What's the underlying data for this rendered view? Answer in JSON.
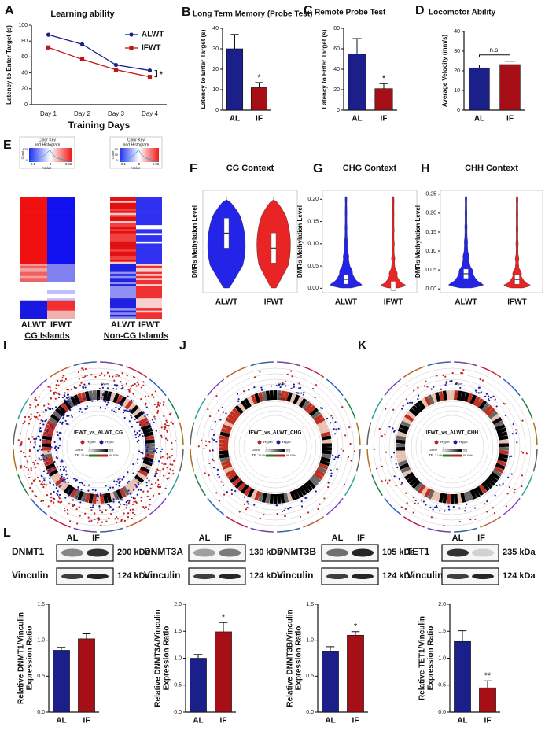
{
  "panel_labels": [
    "A",
    "B",
    "C",
    "D",
    "E",
    "F",
    "G",
    "H",
    "I",
    "J",
    "K",
    "L"
  ],
  "chart_data": [
    {
      "type": "line",
      "title": "Learning ability",
      "categories": [
        "Day 1",
        "Day 2",
        "Day 3",
        "Day 4"
      ],
      "xlabel": "Training Days",
      "ylabel": "Latency to Enter Target (s)",
      "ylim": [
        0,
        100
      ],
      "yticks": [
        0,
        20,
        40,
        60,
        80,
        100
      ],
      "series": [
        {
          "name": "ALWT",
          "color": "#1b1f8a",
          "values": [
            88,
            76,
            50,
            43
          ]
        },
        {
          "name": "IFWT",
          "color": "#c0161c",
          "values": [
            72,
            57,
            44,
            35
          ]
        }
      ],
      "significance": "*"
    },
    {
      "type": "bar",
      "title": "Long Term Memory (Probe Test)",
      "categories": [
        "AL",
        "IF"
      ],
      "colors": [
        "#1b1f8a",
        "#a50f15"
      ],
      "values": [
        30,
        11
      ],
      "errors": [
        7,
        2.5
      ],
      "ylim": [
        0,
        40
      ],
      "yticks": [
        0,
        10,
        20,
        30,
        40
      ],
      "ylabel": "Latency to Enter Target (s)",
      "significance": "*"
    },
    {
      "type": "bar",
      "title": "Remote Probe Test",
      "categories": [
        "AL",
        "IF"
      ],
      "colors": [
        "#1b1f8a",
        "#a50f15"
      ],
      "values": [
        55,
        21
      ],
      "errors": [
        15,
        5
      ],
      "ylim": [
        0,
        80
      ],
      "yticks": [
        0,
        20,
        40,
        60,
        80
      ],
      "ylabel": "Latency to Enter Target (s)",
      "significance": "*"
    },
    {
      "type": "bar",
      "title": "Locomotor Ability",
      "categories": [
        "AL",
        "IF"
      ],
      "colors": [
        "#1b1f8a",
        "#a50f15"
      ],
      "values": [
        21.5,
        23.2
      ],
      "errors": [
        1.5,
        1.7
      ],
      "ylim": [
        0,
        40
      ],
      "yticks": [
        0,
        10,
        20,
        30,
        40
      ],
      "ylabel": "Average Velocity (mm/s)",
      "bracket": "n.s."
    },
    {
      "type": "violin",
      "title": "CG Context",
      "categories": [
        "ALWT",
        "IFWT"
      ],
      "colors": [
        "#2424e8",
        "#e82424"
      ],
      "values": [
        0.59,
        0.43
      ],
      "ylim": [
        -0.05,
        1.05
      ],
      "ylabel": "DMRs Methylation Level"
    },
    {
      "type": "violin",
      "title": "CHG Context",
      "categories": [
        "ALWT",
        "IFWT"
      ],
      "colors": [
        "#2424e8",
        "#e82424"
      ],
      "values": [
        0.02,
        0.005
      ],
      "ylim": [
        -0.01,
        0.22
      ],
      "yticks": [
        {
          "value": 0,
          "label": "0.00"
        },
        0.05,
        {
          "value": 0.1,
          "label": "0.10"
        },
        0.15,
        {
          "value": 0.2,
          "label": "0.20"
        }
      ],
      "ylabel": "DMRs Methylation Level"
    },
    {
      "type": "violin",
      "title": "CHH Context",
      "categories": [
        "ALWT",
        "IFWT"
      ],
      "colors": [
        "#2424e8",
        "#e82424"
      ],
      "values": [
        0.04,
        0.025
      ],
      "ylim": [
        -0.01,
        0.26
      ],
      "yticks": [
        {
          "value": 0,
          "label": "0.00"
        },
        0.05,
        {
          "value": 0.1,
          "label": "0.10"
        },
        0.15,
        {
          "value": 0.2,
          "label": "0.20"
        },
        0.25
      ],
      "ylabel": "DMRs Methylation Level"
    },
    {
      "type": "bar",
      "categories": [
        "AL",
        "IF"
      ],
      "colors": [
        "#1b1f8a",
        "#a50f15"
      ],
      "values": [
        0.86,
        1.02
      ],
      "errors": [
        0.04,
        0.07
      ],
      "ylim": [
        0,
        1.5
      ],
      "yticks": [
        {
          "value": 0,
          "label": "0.0"
        },
        0.5,
        {
          "value": 1,
          "label": "1.0"
        },
        1.5
      ],
      "ylabel": [
        "Relative DNMT1/Vinculin",
        "Expression Ratio"
      ]
    },
    {
      "type": "bar",
      "categories": [
        "AL",
        "IF"
      ],
      "colors": [
        "#1b1f8a",
        "#a50f15"
      ],
      "values": [
        1.0,
        1.49
      ],
      "errors": [
        0.07,
        0.17
      ],
      "ylim": [
        0,
        2
      ],
      "yticks": [
        {
          "value": 0,
          "label": "0.0"
        },
        0.5,
        {
          "value": 1,
          "label": "1.0"
        },
        1.5,
        {
          "value": 2,
          "label": "2.0"
        }
      ],
      "ylabel": [
        "Relative DNMT3A/Vinculin",
        "Expression Ratio"
      ],
      "significance": "*"
    },
    {
      "type": "bar",
      "categories": [
        "AL",
        "IF"
      ],
      "colors": [
        "#1b1f8a",
        "#a50f15"
      ],
      "values": [
        0.85,
        1.07
      ],
      "errors": [
        0.06,
        0.05
      ],
      "ylim": [
        0,
        1.5
      ],
      "yticks": [
        {
          "value": 0,
          "label": "0.0"
        },
        0.5,
        {
          "value": 1,
          "label": "1.0"
        },
        1.5
      ],
      "ylabel": [
        "Relative DNMT3B/Vinculin",
        "Expression Ratio"
      ],
      "significance": "*"
    },
    {
      "type": "bar",
      "categories": [
        "AL",
        "IF"
      ],
      "colors": [
        "#1b1f8a",
        "#a50f15"
      ],
      "values": [
        1.31,
        0.45
      ],
      "errors": [
        0.2,
        0.13
      ],
      "ylim": [
        0,
        2
      ],
      "yticks": [
        {
          "value": 0,
          "label": "0.0"
        },
        0.5,
        {
          "value": 1,
          "label": "1.0"
        },
        1.5,
        {
          "value": 2,
          "label": "2.0"
        }
      ],
      "ylabel": [
        "Relative TET1/Vinculin",
        "Expression Ratio"
      ],
      "significance": "**"
    }
  ],
  "heatmaps": [
    {
      "key_title": [
        "Color Key",
        "and Histogram"
      ],
      "key_ticks": [
        "-0.1",
        "0",
        "0.05"
      ],
      "key_axis": "Value",
      "count_label": "Count",
      "count_ticks": [
        "0",
        "400"
      ],
      "columns": [
        "ALWT",
        "IFWT"
      ],
      "label": "CG Islands"
    },
    {
      "key_title": [
        "Color Key",
        "and Histogram"
      ],
      "key_ticks": [
        "-0.1",
        "0",
        "0.05"
      ],
      "key_axis": "Value",
      "count_label": "Count",
      "count_ticks": [
        "0",
        "40",
        "80"
      ],
      "columns": [
        "ALWT",
        "IFWT"
      ],
      "label": "Non-CG Islands"
    }
  ],
  "circos": [
    {
      "title": "IFWT_vs_ALWT_CG",
      "hyper": "Hyper",
      "hypo": "Hypo",
      "gene": "Gene",
      "te": "TE",
      "gene_range": [
        "1",
        "511"
      ],
      "te_range": [
        "2.14%",
        "66.63%"
      ]
    },
    {
      "title": "IFWT_vs_ALWT_CHG",
      "hyper": "Hyper",
      "hypo": "Hypo",
      "gene": "Gene",
      "te": "TE",
      "gene_range": [
        "1",
        "511"
      ],
      "te_range": [
        "2.14%",
        "66.63%"
      ]
    },
    {
      "title": "IFWT_vs_ALWT_CHH",
      "hyper": "Hyper",
      "hypo": "Hypo",
      "gene": "Gene",
      "te": "TE",
      "gene_range": [
        "1",
        "511"
      ],
      "te_range": [
        "2.14%",
        "66.63%"
      ]
    }
  ],
  "blots": [
    {
      "protein": "DNMT1",
      "size": "200 kDa",
      "control": "Vinculin",
      "control_size": "124 kDa",
      "lanes": [
        "AL",
        "IF"
      ]
    },
    {
      "protein": "DNMT3A",
      "size": "130 kDa",
      "control": "Vinculin",
      "control_size": "124 kDa",
      "lanes": [
        "AL",
        "IF"
      ]
    },
    {
      "protein": "DNMT3B",
      "size": "105 kDa",
      "control": "Vinculin",
      "control_size": "124 kDa",
      "lanes": [
        "AL",
        "IF"
      ]
    },
    {
      "protein": "TET1",
      "size": "235 kDa",
      "control": "Vinculin",
      "control_size": "124 kDa",
      "lanes": [
        "AL",
        "IF"
      ]
    }
  ]
}
